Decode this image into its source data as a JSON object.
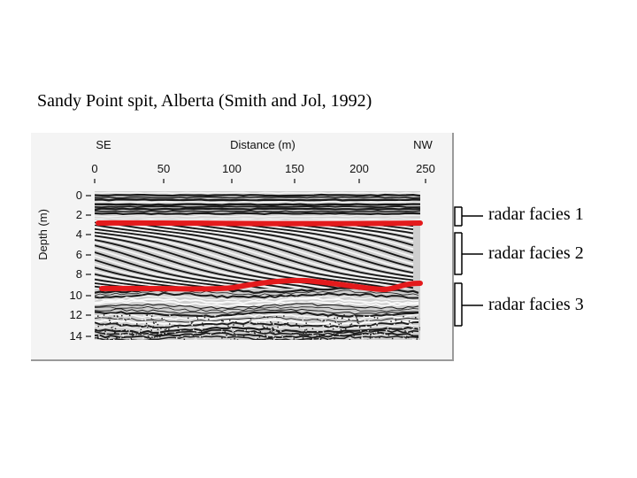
{
  "title": "Sandy Point spit, Alberta (Smith and Jol, 1992)",
  "profile": {
    "left_label": "SE",
    "center_label": "Distance (m)",
    "right_label": "NW",
    "x_ticks": [
      "0",
      "50",
      "100",
      "150",
      "200",
      "250"
    ],
    "y_label": "Depth (m)",
    "y_ticks": [
      "0",
      "2",
      "4",
      "6",
      "8",
      "10",
      "12",
      "14"
    ],
    "boundary_color": "#e31a1c"
  },
  "facies": [
    {
      "label": "radar facies 1"
    },
    {
      "label": "radar facies 2"
    },
    {
      "label": "radar facies 3"
    }
  ]
}
